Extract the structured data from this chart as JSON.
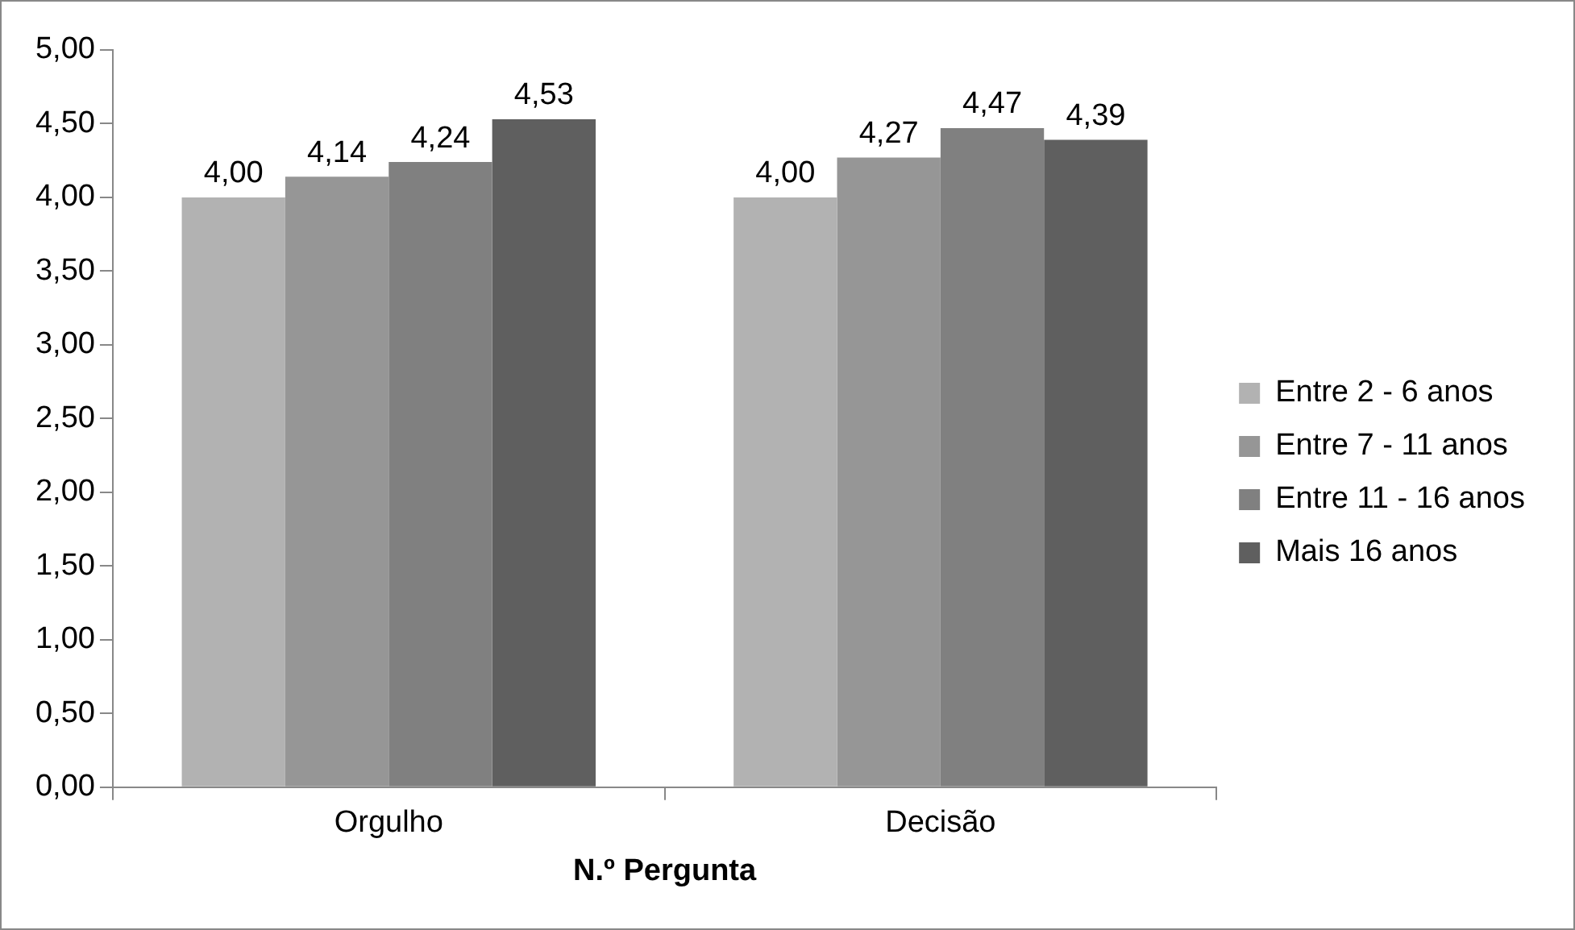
{
  "chart_data": {
    "type": "bar",
    "xlabel": "N.º Pergunta",
    "categories": [
      "Orgulho",
      "Decisão"
    ],
    "series": [
      {
        "name": "Entre 2 - 6 anos",
        "color": "#b2b2b2",
        "values": [
          4.0,
          4.0
        ],
        "value_labels": [
          "4,00",
          "4,00"
        ]
      },
      {
        "name": "Entre 7 - 11 anos",
        "color": "#969696",
        "values": [
          4.14,
          4.27
        ],
        "value_labels": [
          "4,14",
          "4,27"
        ]
      },
      {
        "name": "Entre 11 - 16 anos",
        "color": "#808080",
        "values": [
          4.24,
          4.47
        ],
        "value_labels": [
          "4,24",
          "4,47"
        ]
      },
      {
        "name": "Mais 16 anos",
        "color": "#5f5f5f",
        "values": [
          4.53,
          4.39
        ],
        "value_labels": [
          "4,53",
          "4,39"
        ]
      }
    ],
    "ylim": [
      0,
      5
    ],
    "yticks": [
      {
        "value": 0,
        "label": "0,00"
      },
      {
        "value": 0.5,
        "label": "0,50"
      },
      {
        "value": 1,
        "label": "1,00"
      },
      {
        "value": 1.5,
        "label": "1,50"
      },
      {
        "value": 2,
        "label": "2,00"
      },
      {
        "value": 2.5,
        "label": "2,50"
      },
      {
        "value": 3,
        "label": "3,00"
      },
      {
        "value": 3.5,
        "label": "3,50"
      },
      {
        "value": 4,
        "label": "4,00"
      },
      {
        "value": 4.5,
        "label": "4,50"
      },
      {
        "value": 5,
        "label": "5,00"
      }
    ],
    "grid": false,
    "legend": "right"
  }
}
